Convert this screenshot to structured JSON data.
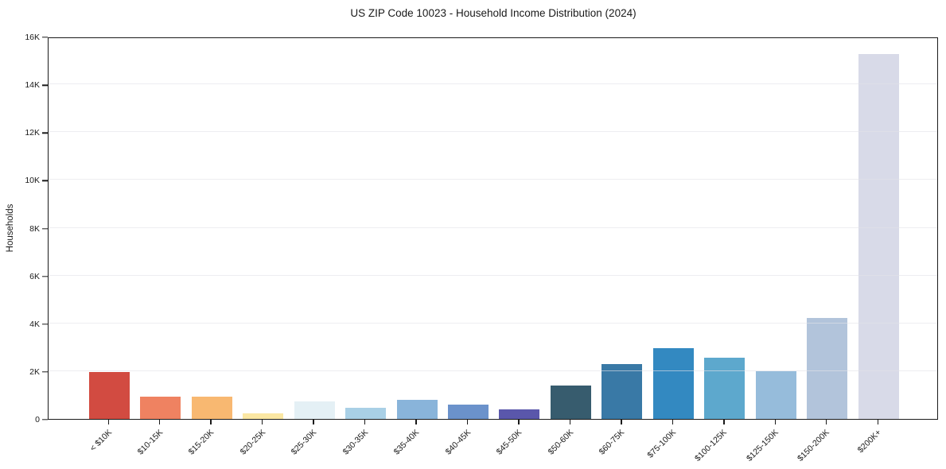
{
  "chart_data": {
    "type": "bar",
    "title": "US ZIP Code 10023 - Household Income Distribution (2024)",
    "xlabel": "",
    "ylabel": "Households",
    "categories": [
      "< $10K",
      "$10-15K",
      "$15-20K",
      "$20-25K",
      "$25-30K",
      "$30-35K",
      "$35-40K",
      "$40-45K",
      "$45-50K",
      "$50-60K",
      "$60-75K",
      "$75-100K",
      "$100-125K",
      "$125-150K",
      "$150-200K",
      "$200K+"
    ],
    "values": [
      1950,
      930,
      940,
      240,
      730,
      470,
      790,
      590,
      400,
      1390,
      2300,
      2970,
      2570,
      1990,
      4230,
      15280
    ],
    "bar_colors": [
      "#d24b41",
      "#ef8261",
      "#f8b871",
      "#fbe7a3",
      "#e4f0f5",
      "#a9d0e6",
      "#89b4da",
      "#6b92cb",
      "#5a57ab",
      "#375c6e",
      "#3979a6",
      "#3389c1",
      "#5da8cd",
      "#96bcdb",
      "#b2c4db",
      "#d8dae8"
    ],
    "ylim": [
      0,
      16000
    ],
    "yticks": [
      {
        "value": 0,
        "label": "0"
      },
      {
        "value": 2000,
        "label": "2K"
      },
      {
        "value": 4000,
        "label": "4K"
      },
      {
        "value": 6000,
        "label": "6K"
      },
      {
        "value": 8000,
        "label": "8K"
      },
      {
        "value": 10000,
        "label": "10K"
      },
      {
        "value": 12000,
        "label": "12K"
      },
      {
        "value": 14000,
        "label": "14K"
      },
      {
        "value": 16000,
        "label": "16K"
      }
    ],
    "grid": "horizontal",
    "legend": "none",
    "background_color": "#ffffff",
    "spine_color": "#1a1a1a"
  }
}
